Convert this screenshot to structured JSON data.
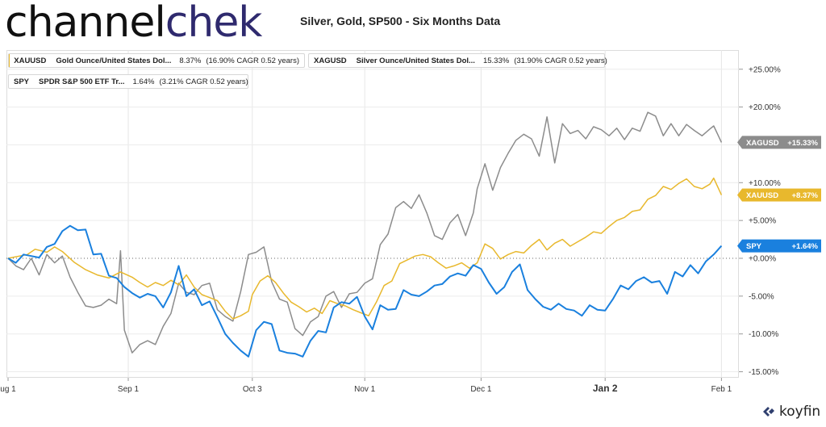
{
  "brand": {
    "logo_part1": "channel",
    "logo_part2": "chek",
    "footer_logo": "koyfin"
  },
  "chart_data": {
    "type": "line",
    "title": "Silver, Gold, SP500 - Six Months Data",
    "xlabel": "",
    "ylabel": "",
    "x_tick_labels": [
      "ug 1",
      "Sep 1",
      "Oct 3",
      "Nov 1",
      "Dec 1",
      "Jan 2",
      "Feb 1"
    ],
    "x_tick_days": [
      0,
      31,
      63,
      92,
      122,
      154,
      184
    ],
    "y_tick_labels": [
      "+25.00%",
      "+20.00%",
      "+15.00%",
      "+10.00%",
      "+5.00%",
      "+0.00%",
      "-5.00%",
      "-10.00%",
      "-15.00%"
    ],
    "y_tick_values": [
      25,
      20,
      15,
      10,
      5,
      0,
      -5,
      -10,
      -15
    ],
    "ylim": [
      -15,
      25
    ],
    "series": [
      {
        "name": "XAUUSD",
        "legend_symbol": "XAUUSD",
        "legend_name": "Gold Ounce/United States Dol...",
        "legend_value": "8.37%",
        "legend_cagr": "(16.90% CAGR 0.52 years)",
        "badge": "XAUUSD  +8.37%",
        "color": "#e8b82d",
        "points": [
          [
            0,
            0
          ],
          [
            5,
            0.5
          ],
          [
            7,
            1.2
          ],
          [
            10,
            0.8
          ],
          [
            12,
            1.5
          ],
          [
            14,
            0.9
          ],
          [
            17,
            -0.5
          ],
          [
            20,
            -1.5
          ],
          [
            23,
            -2.2
          ],
          [
            26,
            -2.6
          ],
          [
            29,
            -1.8
          ],
          [
            32,
            -2.5
          ],
          [
            34,
            -3.2
          ],
          [
            36,
            -3.8
          ],
          [
            38,
            -3.2
          ],
          [
            40,
            -3.6
          ],
          [
            42,
            -2.9
          ],
          [
            44,
            -3.5
          ],
          [
            46,
            -2.2
          ],
          [
            48,
            -3.8
          ],
          [
            50,
            -4.8
          ],
          [
            52,
            -5.2
          ],
          [
            54,
            -5.6
          ],
          [
            56,
            -7
          ],
          [
            58,
            -8
          ],
          [
            60,
            -7.6
          ],
          [
            62,
            -7
          ],
          [
            63,
            -4.8
          ],
          [
            65,
            -3
          ],
          [
            67,
            -2.3
          ],
          [
            69,
            -3.2
          ],
          [
            71,
            -4.6
          ],
          [
            73,
            -5.8
          ],
          [
            75,
            -6.4
          ],
          [
            77,
            -7.1
          ],
          [
            79,
            -6.6
          ],
          [
            81,
            -7.3
          ],
          [
            83,
            -5.6
          ],
          [
            85,
            -6
          ],
          [
            87,
            -6.3
          ],
          [
            89,
            -6.8
          ],
          [
            91,
            -7.2
          ],
          [
            93,
            -7.6
          ],
          [
            95,
            -5.8
          ],
          [
            97,
            -3.6
          ],
          [
            99,
            -3
          ],
          [
            101,
            -0.7
          ],
          [
            103,
            -0.2
          ],
          [
            105,
            0.3
          ],
          [
            107,
            0.5
          ],
          [
            109,
            0.2
          ],
          [
            111,
            -0.6
          ],
          [
            113,
            -1.3
          ],
          [
            115,
            -1
          ],
          [
            117,
            -0.6
          ],
          [
            119,
            -1.3
          ],
          [
            121,
            -0.6
          ],
          [
            123,
            1.9
          ],
          [
            125,
            1.3
          ],
          [
            127,
            -0.1
          ],
          [
            129,
            0.5
          ],
          [
            131,
            0.9
          ],
          [
            133,
            0.7
          ],
          [
            135,
            1.7
          ],
          [
            137,
            2.5
          ],
          [
            139,
            1.1
          ],
          [
            141,
            2
          ],
          [
            143,
            2.5
          ],
          [
            145,
            1.6
          ],
          [
            147,
            2.2
          ],
          [
            149,
            2.8
          ],
          [
            151,
            3.5
          ],
          [
            153,
            3.3
          ],
          [
            155,
            4.2
          ],
          [
            157,
            5
          ],
          [
            159,
            5.4
          ],
          [
            161,
            6.2
          ],
          [
            163,
            6.4
          ],
          [
            165,
            7.8
          ],
          [
            167,
            8.3
          ],
          [
            169,
            9.5
          ],
          [
            171,
            9.1
          ],
          [
            173,
            9.9
          ],
          [
            175,
            10.5
          ],
          [
            177,
            9.5
          ],
          [
            179,
            9.2
          ],
          [
            181,
            9.8
          ],
          [
            182,
            10.6
          ],
          [
            184,
            8.37
          ]
        ]
      },
      {
        "name": "XAGUSD",
        "legend_symbol": "XAGUSD",
        "legend_name": "Silver Ounce/United States Dol...",
        "legend_value": "15.33%",
        "legend_cagr": "(31.90% CAGR 0.52 years)",
        "badge": "XAGUSD  +15.33%",
        "color": "#8c8c8c",
        "points": [
          [
            0,
            0
          ],
          [
            2,
            -1
          ],
          [
            4,
            -1.5
          ],
          [
            6,
            0
          ],
          [
            8,
            -2.2
          ],
          [
            10,
            0.5
          ],
          [
            12,
            -0.6
          ],
          [
            14,
            0.3
          ],
          [
            16,
            -2.5
          ],
          [
            18,
            -4.5
          ],
          [
            20,
            -6.3
          ],
          [
            22,
            -6.5
          ],
          [
            24,
            -6.2
          ],
          [
            26,
            -5.4
          ],
          [
            28,
            -6
          ],
          [
            29,
            1
          ],
          [
            30,
            -9.5
          ],
          [
            32,
            -12.5
          ],
          [
            34,
            -11.4
          ],
          [
            36,
            -10.9
          ],
          [
            38,
            -11.4
          ],
          [
            40,
            -9
          ],
          [
            42,
            -7.3
          ],
          [
            44,
            -3.3
          ],
          [
            46,
            -4.5
          ],
          [
            48,
            -4.8
          ],
          [
            50,
            -3.6
          ],
          [
            52,
            -3.3
          ],
          [
            54,
            -6.8
          ],
          [
            56,
            -7.7
          ],
          [
            58,
            -8.3
          ],
          [
            60,
            -4.4
          ],
          [
            62,
            0.5
          ],
          [
            64,
            0.8
          ],
          [
            66,
            1.5
          ],
          [
            68,
            -3.1
          ],
          [
            70,
            -5.4
          ],
          [
            72,
            -5.8
          ],
          [
            74,
            -9.3
          ],
          [
            76,
            -10.2
          ],
          [
            78,
            -8.4
          ],
          [
            80,
            -7.7
          ],
          [
            82,
            -5
          ],
          [
            84,
            -4.4
          ],
          [
            86,
            -6.5
          ],
          [
            88,
            -4.7
          ],
          [
            90,
            -4.5
          ],
          [
            92,
            -3.3
          ],
          [
            94,
            -2.7
          ],
          [
            96,
            1.8
          ],
          [
            98,
            3.2
          ],
          [
            100,
            6.7
          ],
          [
            102,
            7.5
          ],
          [
            104,
            6.6
          ],
          [
            106,
            8.4
          ],
          [
            108,
            6
          ],
          [
            110,
            3
          ],
          [
            112,
            2.5
          ],
          [
            114,
            4.7
          ],
          [
            116,
            5.8
          ],
          [
            118,
            3
          ],
          [
            120,
            6
          ],
          [
            121,
            9.2
          ],
          [
            123,
            12.5
          ],
          [
            125,
            9
          ],
          [
            127,
            12
          ],
          [
            129,
            13.9
          ],
          [
            131,
            15.6
          ],
          [
            133,
            16.4
          ],
          [
            135,
            15.8
          ],
          [
            137,
            13.5
          ],
          [
            139,
            18.7
          ],
          [
            141,
            12.6
          ],
          [
            143,
            17.8
          ],
          [
            145,
            16.5
          ],
          [
            147,
            16.9
          ],
          [
            149,
            15.8
          ],
          [
            151,
            17.4
          ],
          [
            153,
            17
          ],
          [
            155,
            16.2
          ],
          [
            157,
            17.2
          ],
          [
            159,
            15.7
          ],
          [
            161,
            17.2
          ],
          [
            163,
            16.8
          ],
          [
            165,
            19.3
          ],
          [
            167,
            18.8
          ],
          [
            169,
            16.2
          ],
          [
            171,
            17.8
          ],
          [
            173,
            16.2
          ],
          [
            175,
            17.7
          ],
          [
            177,
            16.9
          ],
          [
            179,
            16.2
          ],
          [
            181,
            17.1
          ],
          [
            182,
            17.5
          ],
          [
            184,
            15.33
          ]
        ]
      },
      {
        "name": "SPY",
        "legend_symbol": "SPY",
        "legend_name": "SPDR S&P 500 ETF Tr...",
        "legend_value": "1.64%",
        "legend_cagr": "(3.21% CAGR 0.52 years)",
        "badge": "SPY  +1.64%",
        "color": "#1a80de",
        "points": [
          [
            0,
            0
          ],
          [
            2,
            -0.6
          ],
          [
            4,
            0.5
          ],
          [
            6,
            0.3
          ],
          [
            8,
            0.1
          ],
          [
            10,
            1.5
          ],
          [
            12,
            1.9
          ],
          [
            14,
            3.6
          ],
          [
            16,
            4.3
          ],
          [
            18,
            3.7
          ],
          [
            20,
            3.8
          ],
          [
            22,
            0.5
          ],
          [
            24,
            0.6
          ],
          [
            26,
            -2.3
          ],
          [
            28,
            -2.6
          ],
          [
            30,
            -3.8
          ],
          [
            32,
            -4.6
          ],
          [
            34,
            -5.2
          ],
          [
            36,
            -4.7
          ],
          [
            38,
            -5
          ],
          [
            40,
            -6.5
          ],
          [
            42,
            -4.5
          ],
          [
            44,
            -1
          ],
          [
            46,
            -5
          ],
          [
            48,
            -4.1
          ],
          [
            50,
            -6.2
          ],
          [
            52,
            -5.7
          ],
          [
            54,
            -7.8
          ],
          [
            56,
            -10
          ],
          [
            58,
            -11.2
          ],
          [
            60,
            -12.2
          ],
          [
            62,
            -13
          ],
          [
            64,
            -9.5
          ],
          [
            66,
            -8.4
          ],
          [
            68,
            -8.7
          ],
          [
            70,
            -12.2
          ],
          [
            72,
            -12.5
          ],
          [
            74,
            -12.6
          ],
          [
            76,
            -13
          ],
          [
            78,
            -10.9
          ],
          [
            80,
            -9.6
          ],
          [
            82,
            -9.8
          ],
          [
            84,
            -6.5
          ],
          [
            86,
            -5.8
          ],
          [
            88,
            -6
          ],
          [
            90,
            -5.1
          ],
          [
            92,
            -7.7
          ],
          [
            94,
            -9.4
          ],
          [
            96,
            -6.2
          ],
          [
            98,
            -6.8
          ],
          [
            100,
            -6.7
          ],
          [
            102,
            -4.2
          ],
          [
            104,
            -4.8
          ],
          [
            106,
            -5
          ],
          [
            108,
            -4.4
          ],
          [
            110,
            -3.6
          ],
          [
            112,
            -3.4
          ],
          [
            114,
            -2.4
          ],
          [
            116,
            -2
          ],
          [
            118,
            -2.3
          ],
          [
            120,
            -0.9
          ],
          [
            122,
            -1.4
          ],
          [
            124,
            -3.2
          ],
          [
            126,
            -4.7
          ],
          [
            128,
            -3.8
          ],
          [
            130,
            -1.8
          ],
          [
            132,
            -0.8
          ],
          [
            134,
            -4.2
          ],
          [
            136,
            -5.4
          ],
          [
            138,
            -6.4
          ],
          [
            140,
            -6.8
          ],
          [
            142,
            -6
          ],
          [
            144,
            -6.7
          ],
          [
            146,
            -6.9
          ],
          [
            148,
            -7.6
          ],
          [
            150,
            -6.2
          ],
          [
            152,
            -6.8
          ],
          [
            154,
            -6.9
          ],
          [
            156,
            -5.4
          ],
          [
            158,
            -3.6
          ],
          [
            160,
            -4.1
          ],
          [
            162,
            -3
          ],
          [
            164,
            -2.5
          ],
          [
            166,
            -3.2
          ],
          [
            168,
            -3
          ],
          [
            170,
            -4.7
          ],
          [
            172,
            -1.8
          ],
          [
            174,
            -2.4
          ],
          [
            176,
            -0.9
          ],
          [
            178,
            -2
          ],
          [
            180,
            -0.4
          ],
          [
            182,
            0.5
          ],
          [
            184,
            1.64
          ]
        ]
      }
    ]
  }
}
